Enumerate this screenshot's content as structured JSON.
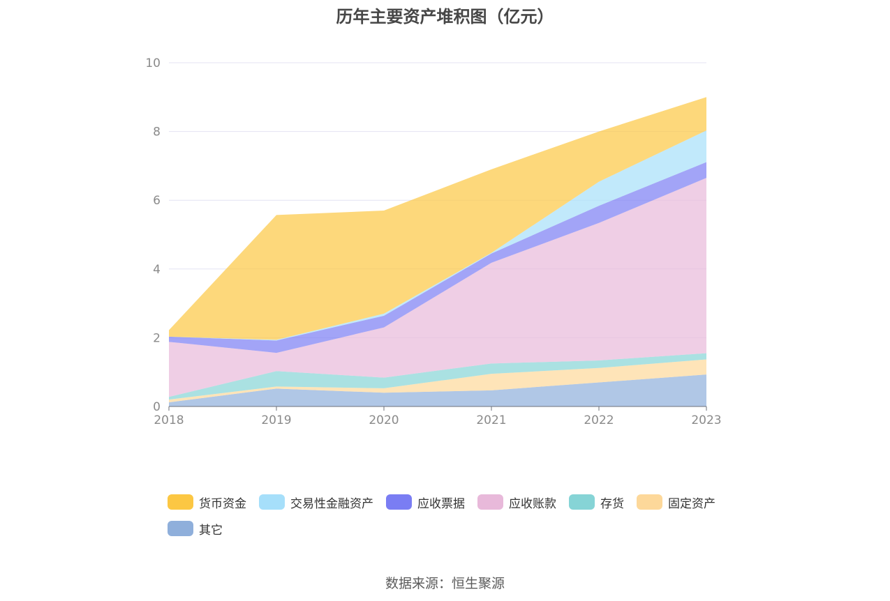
{
  "chart_data": {
    "type": "area",
    "stacked": true,
    "title": "历年主要资产堆积图（亿元）",
    "x": [
      "2018",
      "2019",
      "2020",
      "2021",
      "2022",
      "2023"
    ],
    "ylim": [
      0,
      10
    ],
    "yticks": [
      "0",
      "2",
      "4",
      "6",
      "8",
      "10"
    ],
    "grid": true,
    "legend_position": "bottom",
    "series": [
      {
        "name": "其它",
        "color": "#8fafdb",
        "values": [
          0.12,
          0.52,
          0.4,
          0.47,
          0.7,
          0.93
        ]
      },
      {
        "name": "固定资产",
        "color": "#fdd89a",
        "values": [
          0.08,
          0.06,
          0.13,
          0.48,
          0.42,
          0.44
        ]
      },
      {
        "name": "存货",
        "color": "#86d4d6",
        "values": [
          0.08,
          0.45,
          0.31,
          0.3,
          0.22,
          0.18
        ]
      },
      {
        "name": "应收账款",
        "color": "#e8b9da",
        "values": [
          1.6,
          0.53,
          1.46,
          2.93,
          4.0,
          5.1
        ]
      },
      {
        "name": "应收票据",
        "color": "#7a7df3",
        "values": [
          0.15,
          0.36,
          0.34,
          0.27,
          0.5,
          0.46
        ]
      },
      {
        "name": "交易性金融资产",
        "color": "#a6dffa",
        "values": [
          0.0,
          0.02,
          0.06,
          0.02,
          0.7,
          0.92
        ]
      },
      {
        "name": "货币资金",
        "color": "#fcc743",
        "values": [
          0.19,
          3.63,
          3.0,
          2.43,
          1.46,
          0.97
        ]
      }
    ],
    "legend_order": [
      "货币资金",
      "交易性金融资产",
      "应收票据",
      "应收账款",
      "存货",
      "固定资产",
      "其它"
    ]
  },
  "source_text": "数据来源：恒生聚源"
}
